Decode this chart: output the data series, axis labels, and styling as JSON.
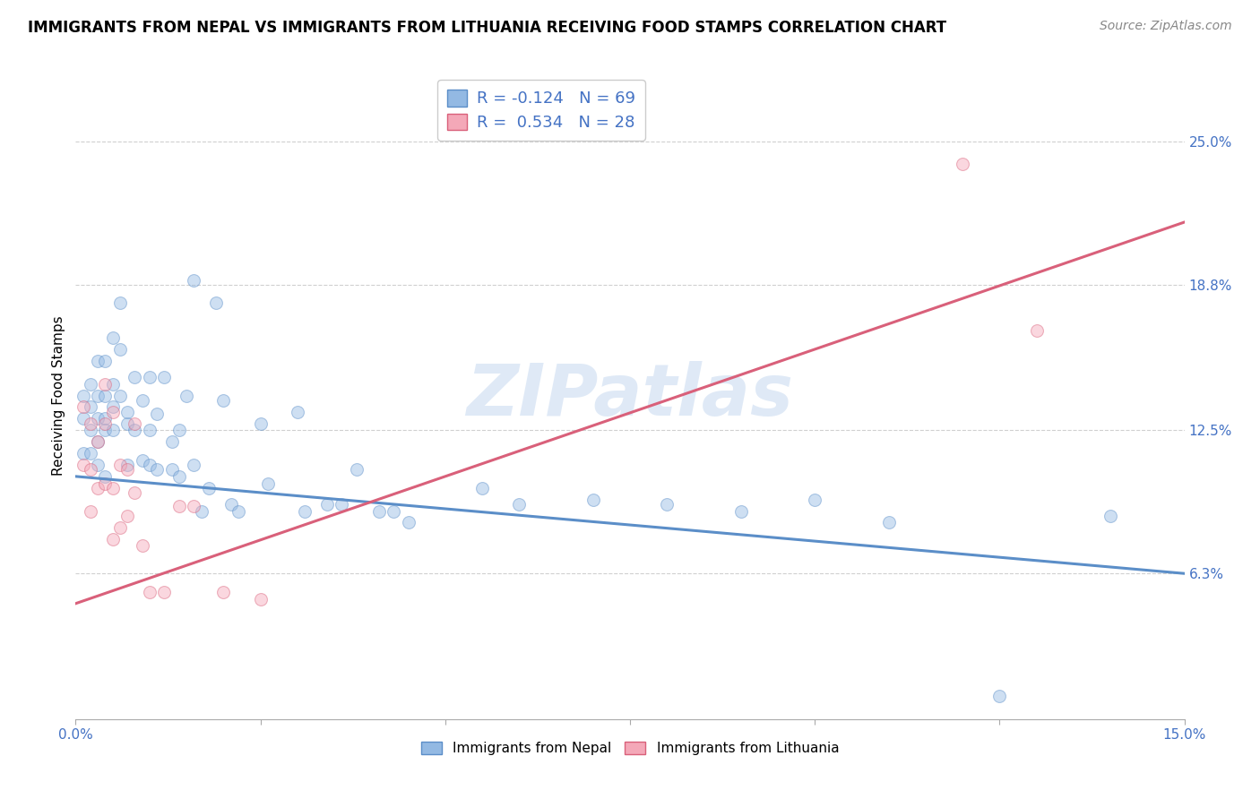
{
  "title": "IMMIGRANTS FROM NEPAL VS IMMIGRANTS FROM LITHUANIA RECEIVING FOOD STAMPS CORRELATION CHART",
  "source": "Source: ZipAtlas.com",
  "ylabel": "Receiving Food Stamps",
  "xlim": [
    0.0,
    0.15
  ],
  "ylim": [
    0.0,
    0.28
  ],
  "ytick_labels_right": [
    "6.3%",
    "12.5%",
    "18.8%",
    "25.0%"
  ],
  "ytick_vals_right": [
    0.063,
    0.125,
    0.188,
    0.25
  ],
  "nepal_color": "#93b9e3",
  "nepal_color_line": "#5b8ec8",
  "lithuania_color": "#f4a8b8",
  "lithuania_color_line": "#d9607a",
  "nepal_R": -0.124,
  "nepal_N": 69,
  "lithuania_R": 0.534,
  "lithuania_N": 28,
  "watermark": "ZIPatlas",
  "background_color": "#ffffff",
  "legend_label_nepal": "Immigrants from Nepal",
  "legend_label_lithuania": "Immigrants from Lithuania",
  "nepal_line_x0": 0.0,
  "nepal_line_y0": 0.105,
  "nepal_line_x1": 0.15,
  "nepal_line_y1": 0.063,
  "lith_line_x0": 0.0,
  "lith_line_y0": 0.05,
  "lith_line_x1": 0.15,
  "lith_line_y1": 0.215,
  "nepal_x": [
    0.001,
    0.001,
    0.001,
    0.002,
    0.002,
    0.002,
    0.002,
    0.003,
    0.003,
    0.003,
    0.003,
    0.003,
    0.004,
    0.004,
    0.004,
    0.004,
    0.004,
    0.005,
    0.005,
    0.005,
    0.005,
    0.006,
    0.006,
    0.006,
    0.007,
    0.007,
    0.007,
    0.008,
    0.008,
    0.009,
    0.009,
    0.01,
    0.01,
    0.01,
    0.011,
    0.011,
    0.012,
    0.013,
    0.013,
    0.014,
    0.014,
    0.015,
    0.016,
    0.016,
    0.017,
    0.018,
    0.019,
    0.02,
    0.021,
    0.022,
    0.025,
    0.026,
    0.03,
    0.031,
    0.034,
    0.036,
    0.038,
    0.041,
    0.043,
    0.045,
    0.055,
    0.06,
    0.07,
    0.08,
    0.09,
    0.1,
    0.11,
    0.125,
    0.14
  ],
  "nepal_y": [
    0.13,
    0.14,
    0.115,
    0.145,
    0.135,
    0.125,
    0.115,
    0.155,
    0.14,
    0.13,
    0.12,
    0.11,
    0.155,
    0.14,
    0.13,
    0.125,
    0.105,
    0.165,
    0.145,
    0.135,
    0.125,
    0.18,
    0.16,
    0.14,
    0.128,
    0.133,
    0.11,
    0.148,
    0.125,
    0.138,
    0.112,
    0.148,
    0.125,
    0.11,
    0.132,
    0.108,
    0.148,
    0.12,
    0.108,
    0.125,
    0.105,
    0.14,
    0.19,
    0.11,
    0.09,
    0.1,
    0.18,
    0.138,
    0.093,
    0.09,
    0.128,
    0.102,
    0.133,
    0.09,
    0.093,
    0.093,
    0.108,
    0.09,
    0.09,
    0.085,
    0.1,
    0.093,
    0.095,
    0.093,
    0.09,
    0.095,
    0.085,
    0.01,
    0.088
  ],
  "lithuania_x": [
    0.001,
    0.001,
    0.002,
    0.002,
    0.002,
    0.003,
    0.003,
    0.004,
    0.004,
    0.004,
    0.005,
    0.005,
    0.005,
    0.006,
    0.006,
    0.007,
    0.007,
    0.008,
    0.008,
    0.009,
    0.01,
    0.012,
    0.014,
    0.016,
    0.02,
    0.025,
    0.12,
    0.13
  ],
  "lithuania_y": [
    0.135,
    0.11,
    0.128,
    0.108,
    0.09,
    0.12,
    0.1,
    0.145,
    0.128,
    0.102,
    0.133,
    0.1,
    0.078,
    0.11,
    0.083,
    0.108,
    0.088,
    0.128,
    0.098,
    0.075,
    0.055,
    0.055,
    0.092,
    0.092,
    0.055,
    0.052,
    0.24,
    0.168
  ],
  "grid_color": "#d0d0d0",
  "tick_color": "#4472c4",
  "title_fontsize": 12,
  "label_fontsize": 11,
  "source_fontsize": 10,
  "marker_size": 100,
  "marker_alpha": 0.45
}
